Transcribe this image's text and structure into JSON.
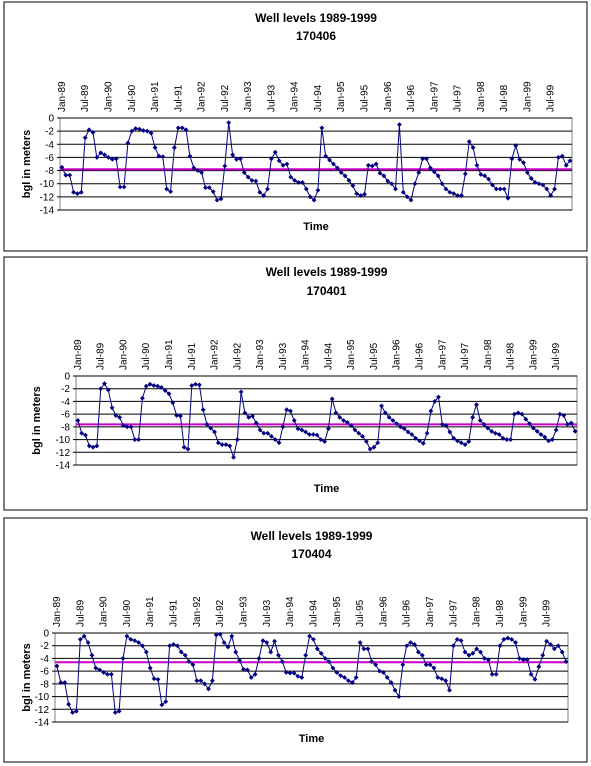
{
  "chart_data": [
    {
      "type": "line",
      "title": "Well levels 1989-1999",
      "subtitle": "170406",
      "xlabel": "Time",
      "ylabel": "bgl in meters",
      "categories": [
        "Jan-89",
        null,
        null,
        null,
        null,
        null,
        "Jul-89",
        null,
        null,
        null,
        null,
        null,
        "Jan-90",
        null,
        null,
        null,
        null,
        null,
        "Jul-90",
        null,
        null,
        null,
        null,
        null,
        "Jan-91",
        null,
        null,
        null,
        null,
        null,
        "Jul-91",
        null,
        null,
        null,
        null,
        null,
        "Jan-92",
        null,
        null,
        null,
        null,
        null,
        "Jul-92",
        null,
        null,
        null,
        null,
        null,
        "Jan-93",
        null,
        null,
        null,
        null,
        null,
        "Jul-93",
        null,
        null,
        null,
        null,
        null,
        "Jan-94",
        null,
        null,
        null,
        null,
        null,
        "Jul-94",
        null,
        null,
        null,
        null,
        null,
        "Jan-95",
        null,
        null,
        null,
        null,
        null,
        "Jul-95",
        null,
        null,
        null,
        null,
        null,
        "Jan-96",
        null,
        null,
        null,
        null,
        null,
        "Jul-96",
        null,
        null,
        null,
        null,
        null,
        "Jan-97",
        null,
        null,
        null,
        null,
        null,
        "Jul-97",
        null,
        null,
        null,
        null,
        null,
        "Jan-98",
        null,
        null,
        null,
        null,
        null,
        "Jul-98",
        null,
        null,
        null,
        null,
        null,
        "Jan-99",
        null,
        null,
        null,
        null,
        null,
        "Jul-99",
        null,
        null,
        null,
        null,
        null
      ],
      "values": [
        -7.5,
        -8.7,
        -8.7,
        -11.3,
        -11.5,
        -11.3,
        -3,
        -1.8,
        -2.2,
        -6,
        -5.3,
        -5.6,
        -6,
        -6.3,
        -6.2,
        -10.5,
        -10.5,
        -3.8,
        -2,
        -1.6,
        -1.7,
        -1.9,
        -2,
        -2.3,
        -4.5,
        -5.8,
        -5.9,
        -10.8,
        -11.2,
        -4.5,
        -1.5,
        -1.5,
        -1.8,
        -5.8,
        -7.6,
        -8,
        -8.3,
        -10.6,
        -10.6,
        -11.2,
        -12.5,
        -12.3,
        -7.3,
        -0.7,
        -5.6,
        -6.3,
        -6.2,
        -8.3,
        -9,
        -9.5,
        -9.6,
        -11.3,
        -11.8,
        -10.8,
        -6.2,
        -5.2,
        -6.5,
        -7.2,
        -7,
        -9,
        -9.5,
        -9.8,
        -9.8,
        -10.8,
        -12,
        -12.5,
        -11,
        -1.5,
        -5.8,
        -6.4,
        -7,
        -7.6,
        -8.3,
        -8.8,
        -9.5,
        -10.3,
        -11.5,
        -11.8,
        -11.6,
        -7.2,
        -7.3,
        -7,
        -8.4,
        -8.8,
        -9.6,
        -10,
        -10.8,
        -1,
        -11.3,
        -12,
        -12.5,
        -10,
        -8.3,
        -6.2,
        -6.2,
        -7.6,
        -8.2,
        -8.8,
        -10,
        -10.8,
        -11.3,
        -11.5,
        -11.8,
        -11.8,
        -8.5,
        -3.6,
        -4.5,
        -7.2,
        -8.6,
        -8.8,
        -9.3,
        -10.2,
        -10.8,
        -10.8,
        -10.8,
        -12.2,
        -6.2,
        -4.2,
        -6.3,
        -6.8,
        -8.3,
        -9.2,
        -9.8,
        -10,
        -10.2,
        -10.8,
        -11.8,
        -10.8,
        -6,
        -5.8,
        -7.2,
        -6.5
      ],
      "color": "#000080",
      "reference_line": {
        "value": -7.8,
        "color": "#cc00cc"
      },
      "ylim": [
        -14,
        0
      ],
      "yticks": [
        0,
        -2,
        -4,
        -6,
        -8,
        -10,
        -12,
        -14
      ],
      "grid": true
    },
    {
      "type": "line",
      "title": "Well levels 1989-1999",
      "subtitle": "170401",
      "xlabel": "Time",
      "ylabel": "bgl in meters",
      "categories": [
        "Jan-89",
        null,
        null,
        null,
        null,
        null,
        "Jul-89",
        null,
        null,
        null,
        null,
        null,
        "Jan-90",
        null,
        null,
        null,
        null,
        null,
        "Jul-90",
        null,
        null,
        null,
        null,
        null,
        "Jan-91",
        null,
        null,
        null,
        null,
        null,
        "Jul-91",
        null,
        null,
        null,
        null,
        null,
        "Jan-92",
        null,
        null,
        null,
        null,
        null,
        "Jul-92",
        null,
        null,
        null,
        null,
        null,
        "Jan-93",
        null,
        null,
        null,
        null,
        null,
        "Jul-93",
        null,
        null,
        null,
        null,
        null,
        "Jan-94",
        null,
        null,
        null,
        null,
        null,
        "Jul-94",
        null,
        null,
        null,
        null,
        null,
        "Jan-95",
        null,
        null,
        null,
        null,
        null,
        "Jul-95",
        null,
        null,
        null,
        null,
        null,
        "Jan-96",
        null,
        null,
        null,
        null,
        null,
        "Jul-96",
        null,
        null,
        null,
        null,
        null,
        "Jan-97",
        null,
        null,
        null,
        null,
        null,
        "Jul-97",
        null,
        null,
        null,
        null,
        null,
        "Jan-98",
        null,
        null,
        null,
        null,
        null,
        "Jul-98",
        null,
        null,
        null,
        null,
        null,
        "Jan-99",
        null,
        null,
        null,
        null,
        null,
        "Jul-99",
        null,
        null,
        null,
        null,
        null
      ],
      "values": [
        -7,
        -9,
        -9.3,
        -11,
        -11.2,
        -11,
        -2,
        -1.2,
        -2.2,
        -5,
        -6.2,
        -6.5,
        -7.8,
        -8,
        -8,
        -10,
        -10,
        -3.5,
        -1.6,
        -1.3,
        -1.5,
        -1.6,
        -1.8,
        -2.3,
        -2.8,
        -4.2,
        -6.2,
        -6.3,
        -11.2,
        -11.5,
        -1.5,
        -1.3,
        -1.4,
        -5.3,
        -7.6,
        -8.2,
        -8.8,
        -10.5,
        -10.8,
        -10.8,
        -11,
        -12.8,
        -10,
        -2.5,
        -5.8,
        -6.5,
        -6.3,
        -7.4,
        -8.5,
        -9,
        -9,
        -9.5,
        -10,
        -10.5,
        -8,
        -5.3,
        -5.5,
        -7,
        -8.3,
        -8.5,
        -8.8,
        -9.2,
        -9.2,
        -9.3,
        -10,
        -10.3,
        -8.3,
        -3.6,
        -5.8,
        -6.5,
        -7,
        -7.3,
        -7.8,
        -8.5,
        -9,
        -9.5,
        -10.3,
        -11.5,
        -11.2,
        -10.5,
        -4.7,
        -5.8,
        -6.5,
        -7,
        -7.5,
        -8,
        -8.3,
        -8.8,
        -9.2,
        -9.8,
        -10.2,
        -10.6,
        -9,
        -5.5,
        -4,
        -3.3,
        -7.6,
        -7.8,
        -8.8,
        -9.8,
        -10.2,
        -10.5,
        -10.8,
        -10.3,
        -6.5,
        -4.5,
        -7,
        -7.6,
        -8.2,
        -8.7,
        -9,
        -9.2,
        -9.8,
        -10,
        -10,
        -6,
        -5.8,
        -6,
        -6.8,
        -7.5,
        -8.2,
        -8.7,
        -9.2,
        -9.6,
        -10.2,
        -10,
        -8.5,
        -6,
        -6.2,
        -7.6,
        -7.4,
        -8.7
      ],
      "color": "#000080",
      "reference_line": {
        "value": -7.6,
        "color": "#cc00cc"
      },
      "ylim": [
        -14,
        0
      ],
      "yticks": [
        0,
        -2,
        -4,
        -6,
        -8,
        -10,
        -12,
        -14
      ],
      "grid": true
    },
    {
      "type": "line",
      "title": "Well levels 1989-1999",
      "subtitle": "170404",
      "xlabel": "Time",
      "ylabel": "bgl in meters",
      "categories": [
        "Jan-89",
        null,
        null,
        null,
        null,
        null,
        "Jul-89",
        null,
        null,
        null,
        null,
        null,
        "Jan-90",
        null,
        null,
        null,
        null,
        null,
        "Jul-90",
        null,
        null,
        null,
        null,
        null,
        "Jan-91",
        null,
        null,
        null,
        null,
        null,
        "Jul-91",
        null,
        null,
        null,
        null,
        null,
        "Jan-92",
        null,
        null,
        null,
        null,
        null,
        "Jul-92",
        null,
        null,
        null,
        null,
        null,
        "Jan-93",
        null,
        null,
        null,
        null,
        null,
        "Jul-93",
        null,
        null,
        null,
        null,
        null,
        "Jan-94",
        null,
        null,
        null,
        null,
        null,
        "Jul-94",
        null,
        null,
        null,
        null,
        null,
        "Jan-95",
        null,
        null,
        null,
        null,
        null,
        "Jul-95",
        null,
        null,
        null,
        null,
        null,
        "Jan-96",
        null,
        null,
        null,
        null,
        null,
        "Jul-96",
        null,
        null,
        null,
        null,
        null,
        "Jan-97",
        null,
        null,
        null,
        null,
        null,
        "Jul-97",
        null,
        null,
        null,
        null,
        null,
        "Jan-98",
        null,
        null,
        null,
        null,
        null,
        "Jul-98",
        null,
        null,
        null,
        null,
        null,
        "Jan-99",
        null,
        null,
        null,
        null,
        null,
        "Jul-99",
        null,
        null,
        null,
        null,
        null
      ],
      "values": [
        -5.2,
        -7.8,
        -7.8,
        -11.2,
        -12.5,
        -12.3,
        -1,
        -0.5,
        -1.5,
        -3.5,
        -5.5,
        -5.8,
        -6.2,
        -6.5,
        -6.5,
        -12.5,
        -12.3,
        -4,
        -0.5,
        -1,
        -1.2,
        -1.5,
        -2,
        -3,
        -5.5,
        -7.2,
        -7.3,
        -11.3,
        -10.8,
        -2,
        -1.8,
        -2,
        -3,
        -3.5,
        -4.5,
        -5,
        -7.5,
        -7.5,
        -8,
        -8.8,
        -7.5,
        -0.3,
        -0.2,
        -1.5,
        -2.2,
        -0.5,
        -3,
        -4.3,
        -5.7,
        -5.8,
        -7,
        -6.5,
        -4,
        -1.2,
        -1.5,
        -3,
        -1.3,
        -3.5,
        -4.5,
        -6.2,
        -6.3,
        -6.3,
        -6.8,
        -7,
        -3.5,
        -0.5,
        -1,
        -2.5,
        -3.2,
        -4,
        -4.5,
        -5.5,
        -6.2,
        -6.7,
        -7,
        -7.5,
        -7.8,
        -7,
        -1.5,
        -2.5,
        -2.5,
        -4.5,
        -5,
        -6,
        -6.2,
        -7,
        -7.8,
        -9,
        -10,
        -5,
        -2,
        -1.5,
        -1.8,
        -3,
        -3.5,
        -5,
        -5,
        -5.5,
        -7,
        -7.2,
        -7.5,
        -9,
        -2,
        -1,
        -1.2,
        -3,
        -3.5,
        -3.2,
        -2.5,
        -3,
        -4,
        -4.2,
        -6.5,
        -6.5,
        -2,
        -1,
        -0.8,
        -1,
        -1.5,
        -4,
        -4.2,
        -4.2,
        -6.5,
        -7.3,
        -5.3,
        -3.5,
        -1.3,
        -1.8,
        -2.5,
        -2,
        -3,
        -4.5
      ],
      "color": "#000080",
      "reference_line": {
        "value": -4.6,
        "color": "#cc00cc"
      },
      "ylim": [
        -14,
        0
      ],
      "yticks": [
        0,
        -2,
        -4,
        -6,
        -8,
        -10,
        -12,
        -14
      ],
      "grid": true
    }
  ]
}
